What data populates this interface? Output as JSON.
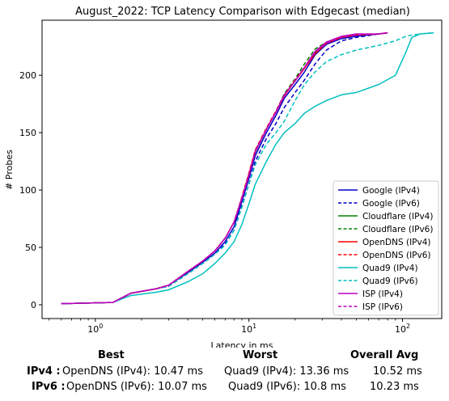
{
  "chart_data": {
    "type": "line",
    "title": "August_2022: TCP Latency Comparison with Edgecast (median)",
    "xlabel": "Latency in ms",
    "ylabel": "# Probes",
    "xscale": "log",
    "xlim": [
      0.45,
      180
    ],
    "ylim": [
      -12,
      248
    ],
    "xticks": [
      1,
      10,
      100
    ],
    "xtick_labels": [
      "10^0",
      "10^1",
      "10^2"
    ],
    "yticks": [
      0,
      50,
      100,
      150,
      200
    ],
    "grid": false,
    "legend_position": "lower-right",
    "series": [
      {
        "name": "Google (IPv4)",
        "color": "#0000cc",
        "dash": "solid",
        "x": [
          0.6,
          1.3,
          1.7,
          2.5,
          3.0,
          4.0,
          5.0,
          6.0,
          7.0,
          8.0,
          9.0,
          10.0,
          11.0,
          13.0,
          15.0,
          17.0,
          20.0,
          23.0,
          27.0,
          32.0,
          40.0,
          50.0,
          70.0,
          80.0
        ],
        "y": [
          1,
          2,
          10,
          14,
          17,
          28,
          37,
          45,
          55,
          68,
          90,
          110,
          130,
          150,
          165,
          180,
          192,
          203,
          218,
          227,
          232,
          234,
          236,
          237
        ]
      },
      {
        "name": "Google (IPv6)",
        "color": "#0000cc",
        "dash": "dashed",
        "x": [
          0.6,
          1.3,
          1.7,
          2.5,
          3.0,
          4.0,
          5.0,
          6.0,
          7.0,
          8.0,
          9.0,
          10.0,
          11.0,
          13.0,
          15.0,
          17.0,
          20.0,
          23.0,
          27.0,
          32.0,
          40.0,
          50.0,
          70.0,
          80.0
        ],
        "y": [
          1,
          2,
          10,
          14,
          16,
          27,
          36,
          44,
          53,
          65,
          86,
          105,
          125,
          145,
          158,
          172,
          185,
          196,
          210,
          222,
          230,
          233,
          236,
          237
        ]
      },
      {
        "name": "Cloudflare (IPv4)",
        "color": "#008000",
        "dash": "solid",
        "x": [
          0.6,
          1.3,
          1.7,
          2.5,
          3.0,
          4.0,
          5.0,
          6.0,
          7.0,
          8.0,
          9.0,
          10.0,
          11.0,
          13.0,
          15.0,
          17.0,
          20.0,
          23.0,
          27.0,
          32.0,
          40.0,
          50.0,
          70.0,
          80.0
        ],
        "y": [
          1,
          2,
          10,
          14,
          17,
          29,
          38,
          47,
          58,
          72,
          93,
          113,
          133,
          153,
          168,
          183,
          195,
          207,
          220,
          228,
          233,
          235,
          236,
          237
        ]
      },
      {
        "name": "Cloudflare (IPv6)",
        "color": "#008000",
        "dash": "dashed",
        "x": [
          0.6,
          1.3,
          1.7,
          2.5,
          3.0,
          4.0,
          5.0,
          6.0,
          7.0,
          8.0,
          9.0,
          10.0,
          11.0,
          13.0,
          15.0,
          17.0,
          20.0,
          23.0,
          27.0,
          32.0,
          40.0,
          50.0,
          70.0,
          80.0
        ],
        "y": [
          1,
          2,
          10,
          14,
          17,
          29,
          38,
          47,
          58,
          72,
          93,
          113,
          133,
          153,
          168,
          184,
          197,
          210,
          223,
          229,
          233,
          235,
          236,
          237
        ]
      },
      {
        "name": "OpenDNS (IPv4)",
        "color": "#ff0000",
        "dash": "solid",
        "x": [
          0.6,
          1.3,
          1.7,
          2.5,
          3.0,
          4.0,
          5.0,
          6.0,
          7.0,
          8.0,
          9.0,
          10.0,
          11.0,
          13.0,
          15.0,
          17.0,
          20.0,
          23.0,
          27.0,
          32.0,
          40.0,
          50.0,
          70.0,
          80.0
        ],
        "y": [
          1,
          2,
          10,
          14,
          17,
          29,
          38,
          47,
          58,
          72,
          93,
          114,
          134,
          153,
          168,
          182,
          195,
          206,
          219,
          228,
          233,
          235,
          236,
          237
        ]
      },
      {
        "name": "OpenDNS (IPv6)",
        "color": "#ff0000",
        "dash": "dashed",
        "x": [
          0.6,
          1.3,
          1.7,
          2.5,
          3.0,
          4.0,
          5.0,
          6.0,
          7.0,
          8.0,
          9.0,
          10.0,
          11.0,
          13.0,
          15.0,
          17.0,
          20.0,
          23.0,
          27.0,
          32.0,
          40.0,
          50.0,
          70.0,
          80.0
        ],
        "y": [
          1,
          2,
          10,
          14,
          17,
          29,
          38,
          47,
          58,
          72,
          94,
          115,
          135,
          154,
          169,
          183,
          196,
          207,
          220,
          228,
          233,
          235,
          236,
          237
        ]
      },
      {
        "name": "Quad9 (IPv4)",
        "color": "#00bfbf",
        "dash": "solid",
        "x": [
          0.6,
          1.3,
          1.7,
          2.5,
          3.0,
          4.0,
          5.0,
          6.0,
          7.0,
          8.0,
          9.0,
          10.0,
          11.0,
          13.0,
          15.0,
          17.0,
          20.0,
          23.0,
          27.0,
          32.0,
          40.0,
          50.0,
          70.0,
          90.0,
          105.0,
          115.0,
          130.0,
          160.0
        ],
        "y": [
          1,
          2,
          8,
          11,
          13,
          20,
          27,
          36,
          45,
          55,
          70,
          88,
          105,
          125,
          140,
          150,
          158,
          167,
          173,
          178,
          183,
          185,
          192,
          200,
          220,
          233,
          236,
          237
        ]
      },
      {
        "name": "Quad9 (IPv6)",
        "color": "#00bfbf",
        "dash": "dashed",
        "x": [
          0.6,
          1.3,
          1.7,
          2.5,
          3.0,
          4.0,
          5.0,
          6.0,
          7.0,
          8.0,
          9.0,
          10.0,
          11.0,
          13.0,
          15.0,
          17.0,
          20.0,
          23.0,
          27.0,
          32.0,
          40.0,
          50.0,
          70.0,
          90.0,
          105.0,
          115.0,
          130.0,
          160.0
        ],
        "y": [
          1,
          2,
          10,
          14,
          16,
          27,
          36,
          44,
          52,
          65,
          85,
          105,
          122,
          140,
          150,
          160,
          178,
          192,
          203,
          212,
          218,
          222,
          226,
          230,
          234,
          235,
          236,
          237
        ]
      },
      {
        "name": "ISP (IPv4)",
        "color": "#bf00bf",
        "dash": "solid",
        "x": [
          0.6,
          1.3,
          1.7,
          2.5,
          3.0,
          4.0,
          5.0,
          6.0,
          7.0,
          8.0,
          9.0,
          10.0,
          11.0,
          13.0,
          15.0,
          17.0,
          20.0,
          23.0,
          27.0,
          32.0,
          40.0,
          50.0,
          70.0,
          80.0
        ],
        "y": [
          1,
          2,
          10,
          14,
          17,
          29,
          38,
          47,
          58,
          72,
          93,
          113,
          134,
          153,
          168,
          183,
          195,
          207,
          221,
          229,
          234,
          236,
          236,
          237
        ]
      },
      {
        "name": "ISP (IPv6)",
        "color": "#bf00bf",
        "dash": "dashed",
        "x": [
          0.6,
          1.3,
          1.7,
          2.5,
          3.0,
          4.0,
          5.0,
          6.0,
          7.0,
          8.0,
          9.0,
          10.0,
          11.0,
          13.0,
          15.0,
          17.0,
          20.0,
          23.0,
          27.0,
          32.0,
          40.0,
          50.0,
          70.0,
          80.0
        ],
        "y": [
          1,
          2,
          10,
          14,
          17,
          29,
          38,
          47,
          58,
          72,
          93,
          113,
          133,
          153,
          168,
          183,
          195,
          207,
          220,
          228,
          233,
          235,
          236,
          237
        ]
      }
    ]
  },
  "summary": {
    "headers": {
      "best": "Best",
      "worst": "Worst",
      "overall": "Overall Avg"
    },
    "ipv4": {
      "label": "IPv4 :",
      "best": "OpenDNS (IPv4): 10.47 ms",
      "worst": "Quad9 (IPv4): 13.36 ms",
      "overall": "10.52 ms"
    },
    "ipv6": {
      "label": "IPv6 :",
      "best": "OpenDNS (IPv6): 10.07 ms",
      "worst": "Quad9 (IPv6): 10.8 ms",
      "overall": "10.23 ms"
    }
  }
}
